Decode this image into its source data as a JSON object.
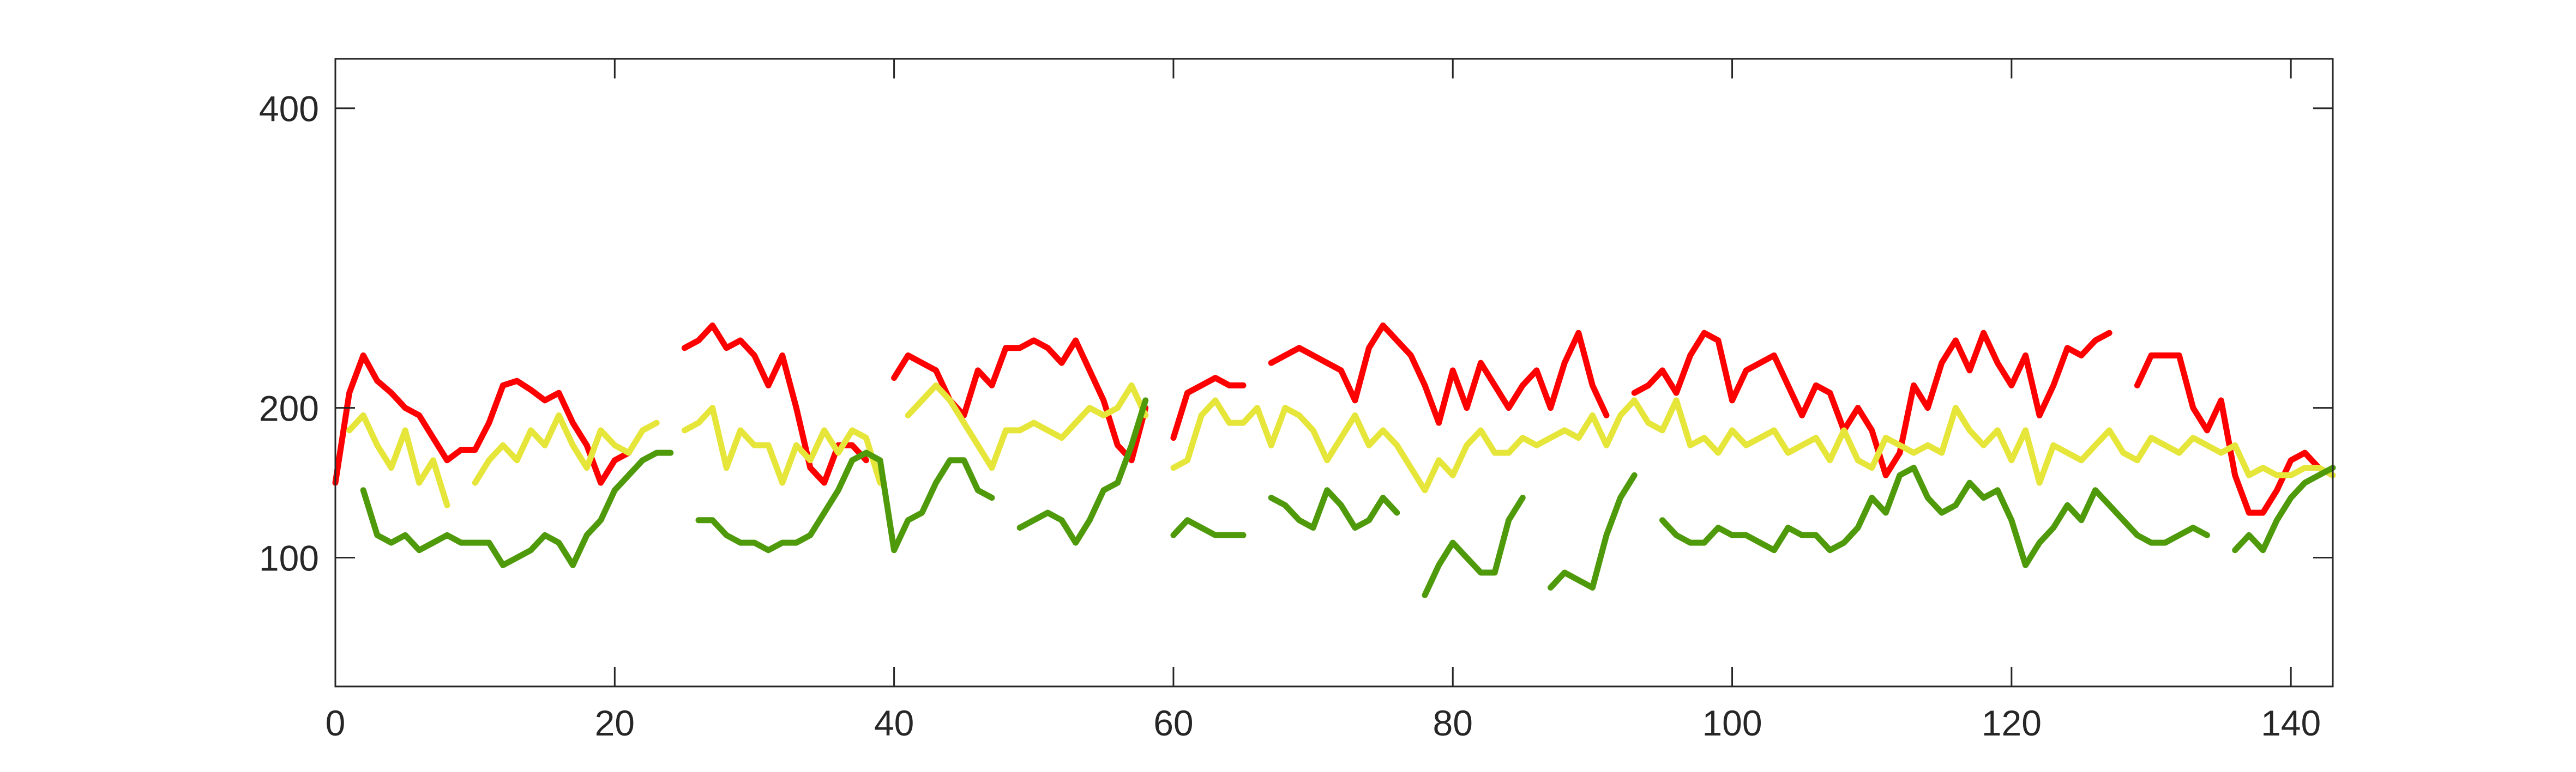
{
  "chart_data": {
    "type": "line",
    "x": [
      0,
      1,
      2,
      3,
      4,
      5,
      6,
      7,
      8,
      9,
      10,
      11,
      12,
      13,
      14,
      15,
      16,
      17,
      18,
      19,
      20,
      21,
      22,
      23,
      24,
      25,
      26,
      27,
      28,
      29,
      30,
      31,
      32,
      33,
      34,
      35,
      36,
      37,
      38,
      39,
      40,
      41,
      42,
      43,
      44,
      45,
      46,
      47,
      48,
      49,
      50,
      51,
      52,
      53,
      54,
      55,
      56,
      57,
      58,
      59,
      60,
      61,
      62,
      63,
      64,
      65,
      66,
      67,
      68,
      69,
      70,
      71,
      72,
      73,
      74,
      75,
      76,
      77,
      78,
      79,
      80,
      81,
      82,
      83,
      84,
      85,
      86,
      87,
      88,
      89,
      90,
      91,
      92,
      93,
      94,
      95,
      96,
      97,
      98,
      99,
      100,
      101,
      102,
      103,
      104,
      105,
      106,
      107,
      108,
      109,
      110,
      111,
      112,
      113,
      114,
      115,
      116,
      117,
      118,
      119,
      120,
      121,
      122,
      123,
      124,
      125,
      126,
      127,
      128,
      129,
      130,
      131,
      132,
      133,
      134,
      135,
      136,
      137,
      138,
      139,
      140,
      141,
      142,
      143
    ],
    "series": [
      {
        "color": "#ff0000",
        "values": [
          150,
          210,
          235,
          218,
          210,
          200,
          195,
          180,
          165,
          172,
          172,
          190,
          215,
          218,
          212,
          205,
          210,
          190,
          175,
          150,
          165,
          170,
          null,
          null,
          null,
          240,
          245,
          255,
          240,
          245,
          235,
          215,
          235,
          200,
          160,
          150,
          175,
          175,
          165,
          null,
          220,
          235,
          230,
          225,
          205,
          195,
          225,
          215,
          240,
          240,
          245,
          240,
          230,
          245,
          225,
          205,
          175,
          165,
          200,
          null,
          180,
          210,
          215,
          220,
          215,
          215,
          null,
          230,
          235,
          240,
          235,
          230,
          225,
          205,
          240,
          255,
          245,
          235,
          215,
          190,
          225,
          200,
          230,
          215,
          200,
          215,
          225,
          200,
          230,
          250,
          215,
          195,
          null,
          210,
          215,
          225,
          210,
          235,
          250,
          245,
          205,
          225,
          230,
          235,
          215,
          195,
          215,
          210,
          185,
          200,
          185,
          155,
          170,
          215,
          200,
          230,
          245,
          225,
          250,
          230,
          215,
          235,
          195,
          215,
          240,
          235,
          245,
          250,
          null,
          215,
          235,
          235,
          235,
          200,
          185,
          205,
          155,
          130,
          130,
          145,
          165,
          170,
          160,
          155
        ]
      },
      {
        "color": "#e5e53a",
        "values": [
          null,
          185,
          195,
          175,
          160,
          185,
          150,
          165,
          135,
          null,
          150,
          165,
          175,
          165,
          185,
          175,
          195,
          175,
          160,
          185,
          175,
          170,
          185,
          190,
          null,
          185,
          190,
          200,
          160,
          185,
          175,
          175,
          150,
          175,
          165,
          185,
          170,
          185,
          180,
          150,
          null,
          195,
          205,
          215,
          205,
          190,
          175,
          160,
          185,
          185,
          190,
          185,
          180,
          190,
          200,
          195,
          200,
          215,
          195,
          null,
          160,
          165,
          195,
          205,
          190,
          190,
          200,
          175,
          200,
          195,
          185,
          165,
          180,
          195,
          175,
          185,
          175,
          160,
          145,
          165,
          155,
          175,
          185,
          170,
          170,
          180,
          175,
          180,
          185,
          180,
          195,
          175,
          195,
          205,
          190,
          185,
          205,
          175,
          180,
          170,
          185,
          175,
          180,
          185,
          170,
          175,
          180,
          165,
          185,
          165,
          160,
          180,
          175,
          170,
          175,
          170,
          200,
          185,
          175,
          185,
          165,
          185,
          150,
          175,
          170,
          165,
          175,
          185,
          170,
          165,
          180,
          175,
          170,
          180,
          175,
          170,
          175,
          155,
          160,
          155,
          155,
          160,
          160,
          155
        ]
      },
      {
        "color": "#4f9a0b",
        "values": [
          null,
          null,
          145,
          115,
          110,
          115,
          105,
          110,
          115,
          110,
          110,
          110,
          95,
          100,
          105,
          115,
          110,
          95,
          115,
          125,
          145,
          155,
          165,
          170,
          170,
          null,
          125,
          125,
          115,
          110,
          110,
          105,
          110,
          110,
          115,
          130,
          145,
          165,
          170,
          165,
          105,
          125,
          130,
          150,
          165,
          165,
          145,
          140,
          null,
          120,
          125,
          130,
          125,
          110,
          125,
          145,
          150,
          175,
          205,
          null,
          115,
          125,
          120,
          115,
          115,
          115,
          null,
          140,
          135,
          125,
          120,
          145,
          135,
          120,
          125,
          140,
          130,
          null,
          75,
          95,
          110,
          100,
          90,
          90,
          125,
          140,
          null,
          80,
          90,
          85,
          80,
          115,
          140,
          155,
          null,
          125,
          115,
          110,
          110,
          120,
          115,
          115,
          110,
          105,
          120,
          115,
          115,
          105,
          110,
          120,
          140,
          130,
          155,
          160,
          140,
          130,
          135,
          150,
          140,
          145,
          125,
          95,
          110,
          120,
          135,
          125,
          145,
          135,
          125,
          115,
          110,
          110,
          115,
          120,
          115,
          null,
          105,
          115,
          105,
          125,
          140,
          150,
          155,
          160
        ]
      }
    ],
    "xlim": [
      0,
      143
    ],
    "ylim": [
      14,
      433
    ],
    "xticks": [
      0,
      20,
      40,
      60,
      80,
      100,
      120,
      140
    ],
    "yticks": [
      100,
      200,
      400
    ]
  }
}
